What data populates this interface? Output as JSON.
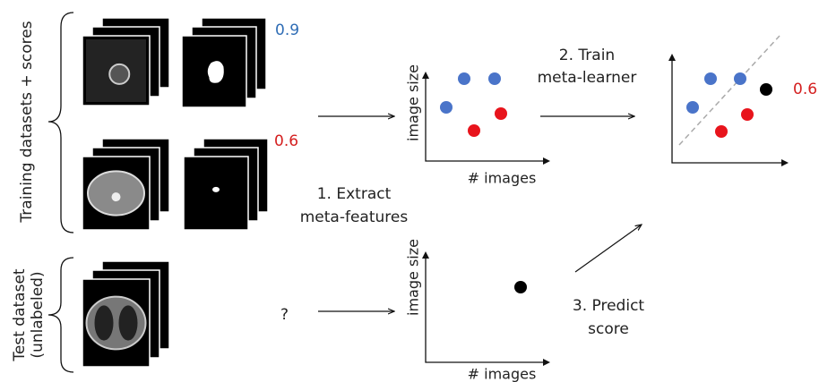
{
  "groups": {
    "training": "Training datasets + scores",
    "test": [
      "Test dataset",
      "(unlabeled)"
    ]
  },
  "scores": [
    0.9,
    0.6
  ],
  "unknown_score": "?",
  "steps": [
    [
      "1.  Extract",
      "meta-features"
    ],
    [
      "2. Train",
      "meta-learner"
    ],
    [
      "3. Predict",
      "score"
    ]
  ],
  "plots": [
    {
      "y_label": "image size",
      "x_label": "# images"
    },
    {
      "y_label": "image size",
      "x_label": "# images"
    },
    {
      "predicted_score": 0.6
    }
  ]
}
